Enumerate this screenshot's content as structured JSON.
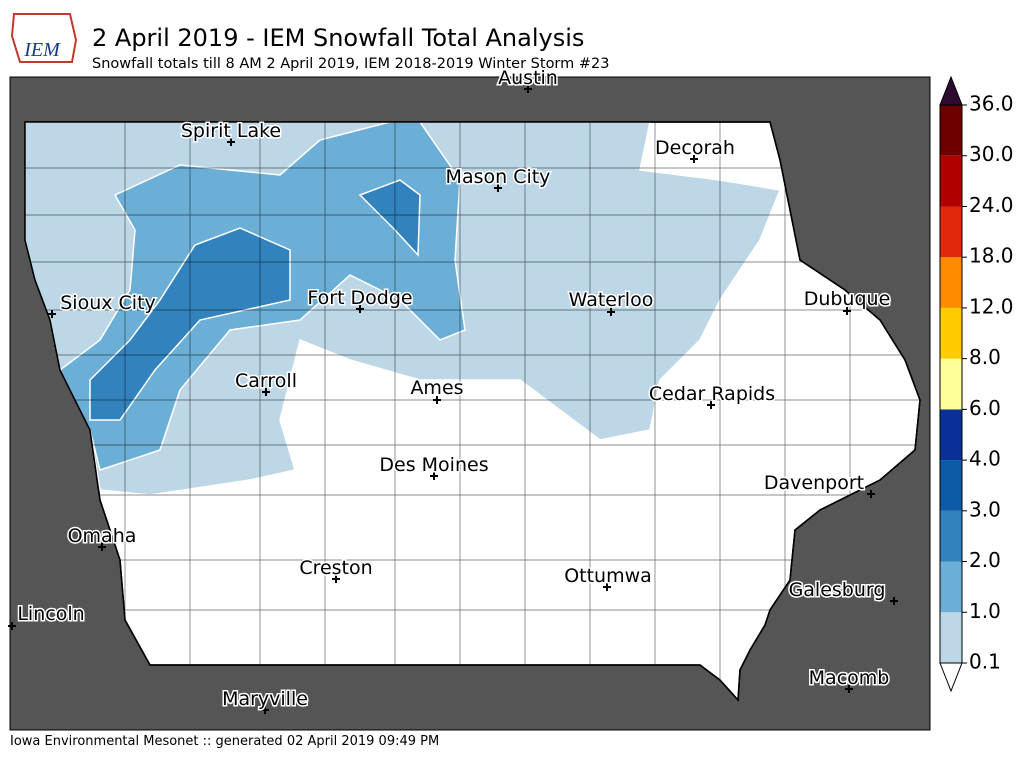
{
  "header": {
    "logo": "IEM",
    "title": "2 April 2019 - IEM Snowfall Total Analysis",
    "subtitle": "Snowfall totals till 8 AM 2 April 2019, IEM 2018-2019 Winter Storm #23"
  },
  "cities": [
    "Austin",
    "Spirit Lake",
    "Decorah",
    "Mason City",
    "Sioux City",
    "Fort Dodge",
    "Waterloo",
    "Dubuque",
    "Carroll",
    "Ames",
    "Cedar Rapids",
    "Des Moines",
    "Davenport",
    "Omaha",
    "Creston",
    "Ottumwa",
    "Galesburg",
    "Lincoln",
    "Macomb",
    "Maryville"
  ],
  "legend": {
    "levels": [
      {
        "value": 0.1,
        "label": "0.1"
      },
      {
        "value": 1,
        "label": "1.0"
      },
      {
        "value": 2,
        "label": "2.0"
      },
      {
        "value": 3,
        "label": "3.0"
      },
      {
        "value": 4,
        "label": "4.0"
      },
      {
        "value": 6,
        "label": "6.0"
      },
      {
        "value": 8,
        "label": "8.0"
      },
      {
        "value": 12,
        "label": "12.0"
      },
      {
        "value": 18,
        "label": "18.0"
      },
      {
        "value": 24,
        "label": "24.0"
      },
      {
        "value": 30,
        "label": "30.0"
      },
      {
        "value": 36,
        "label": "36.0"
      }
    ],
    "colors": [
      "#bdd7e7",
      "#6baed6",
      "#3182bd",
      "#0c5aa6",
      "#0a2f96",
      "#ffff99",
      "#ffcc00",
      "#ff8c00",
      "#e0280a",
      "#b00000",
      "#6e0000"
    ],
    "over_color": "#2e0a30",
    "under_color": "#ffffff"
  },
  "footer": "Iowa Environmental Mesonet :: generated 02 April 2019 09:49 PM"
}
